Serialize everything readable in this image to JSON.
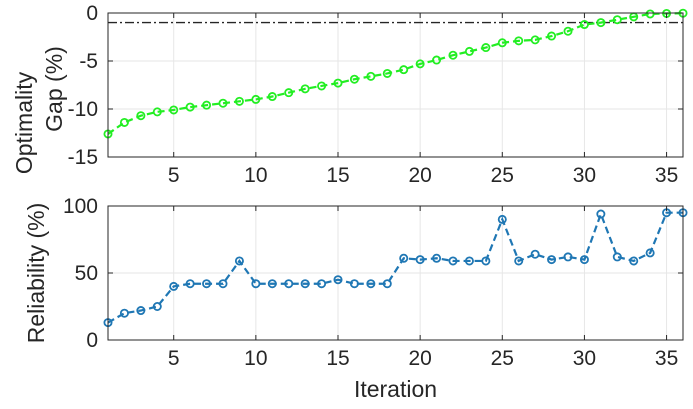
{
  "chart_data": [
    {
      "type": "line",
      "title": "",
      "xlabel": "",
      "ylabel_lines": [
        "Optimality",
        "Gap (%)"
      ],
      "xlim": [
        1,
        36
      ],
      "ylim": [
        -15,
        0
      ],
      "xticks": [
        5,
        10,
        15,
        20,
        25,
        30,
        35
      ],
      "yticks": [
        0,
        -5,
        -10,
        -15
      ],
      "xtick_labels": [
        "5",
        "10",
        "15",
        "20",
        "25",
        "30",
        "35"
      ],
      "ytick_labels": [
        "0",
        "-5",
        "-10",
        "-15"
      ],
      "grid": true,
      "reference_line": {
        "y": -1,
        "style": "dash-dot",
        "color": "#262626"
      },
      "series": [
        {
          "color": "#22ee22",
          "marker": "circle",
          "line": "dashed",
          "x": [
            1,
            2,
            3,
            4,
            5,
            6,
            7,
            8,
            9,
            10,
            11,
            12,
            13,
            14,
            15,
            16,
            17,
            18,
            19,
            20,
            21,
            22,
            23,
            24,
            25,
            26,
            27,
            28,
            29,
            30,
            31,
            32,
            33,
            34,
            35,
            36
          ],
          "values": [
            -12.6,
            -11.4,
            -10.7,
            -10.3,
            -10.1,
            -9.8,
            -9.6,
            -9.4,
            -9.2,
            -9.0,
            -8.7,
            -8.3,
            -7.9,
            -7.6,
            -7.3,
            -6.9,
            -6.6,
            -6.3,
            -5.9,
            -5.3,
            -4.9,
            -4.4,
            -4.0,
            -3.6,
            -3.1,
            -2.9,
            -2.8,
            -2.4,
            -1.9,
            -1.2,
            -1.0,
            -0.7,
            -0.4,
            -0.1,
            -0.05,
            -0.02
          ]
        }
      ]
    },
    {
      "type": "line",
      "title": "",
      "xlabel": "Iteration",
      "ylabel": "Reliability (%)",
      "xlim": [
        1,
        36
      ],
      "ylim": [
        0,
        100
      ],
      "xticks": [
        5,
        10,
        15,
        20,
        25,
        30,
        35
      ],
      "yticks": [
        0,
        50,
        100
      ],
      "xtick_labels": [
        "5",
        "10",
        "15",
        "20",
        "25",
        "30",
        "35"
      ],
      "ytick_labels": [
        "0",
        "50",
        "100"
      ],
      "grid": true,
      "series": [
        {
          "color": "#1f77b4",
          "marker": "circle",
          "line": "dashed",
          "x": [
            1,
            2,
            3,
            4,
            5,
            6,
            7,
            8,
            9,
            10,
            11,
            12,
            13,
            14,
            15,
            16,
            17,
            18,
            19,
            20,
            21,
            22,
            23,
            24,
            25,
            26,
            27,
            28,
            29,
            30,
            31,
            32,
            33,
            34,
            35,
            36
          ],
          "values": [
            13,
            20,
            22,
            25,
            40,
            42,
            42,
            42,
            59,
            42,
            42,
            42,
            42,
            42,
            45,
            42,
            42,
            42,
            61,
            60,
            61,
            59,
            59,
            59,
            90,
            59,
            64,
            60,
            62,
            60,
            94,
            62,
            59,
            65,
            95,
            95
          ]
        }
      ]
    }
  ]
}
